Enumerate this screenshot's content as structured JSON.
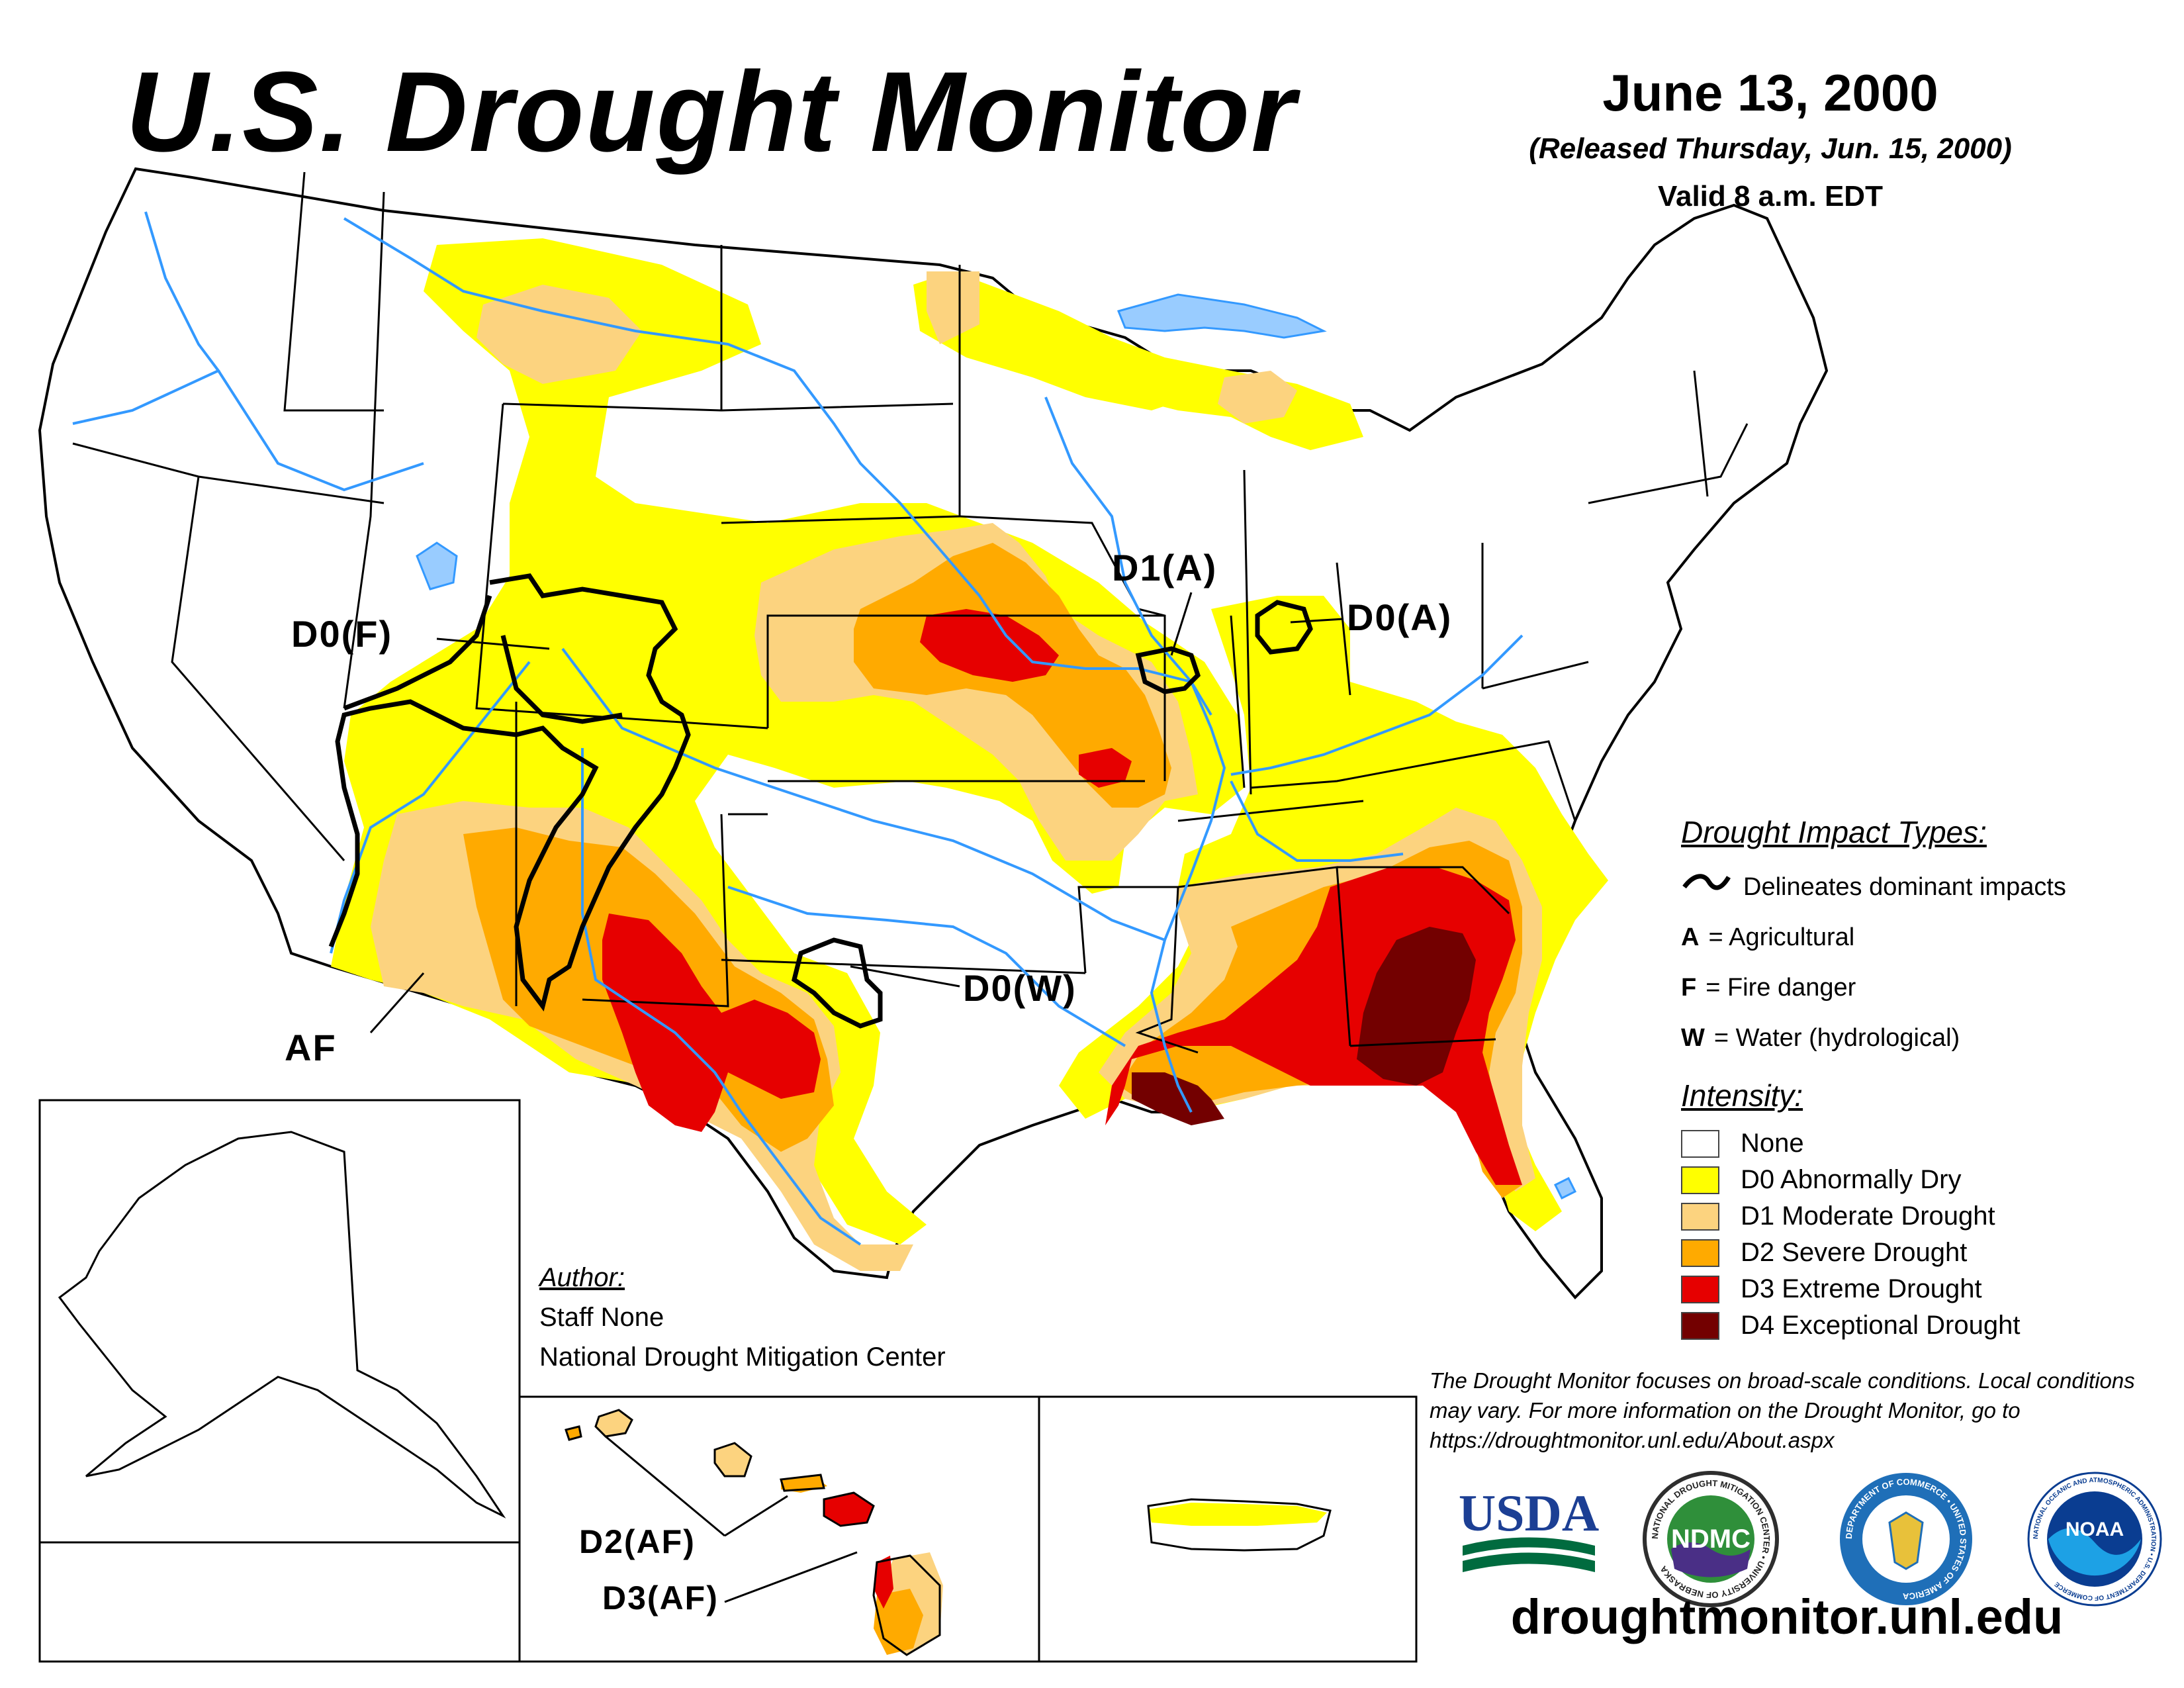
{
  "header": {
    "title": "U.S. Drought Monitor",
    "date": "June 13, 2000",
    "released": "(Released Thursday, Jun. 15, 2000)",
    "valid": "Valid 8 a.m. EDT"
  },
  "map_labels": {
    "d0_f": "D0(F)",
    "d1_a": "D1(A)",
    "d0_a": "D0(A)",
    "d0_w": "D0(W)",
    "af": "AF",
    "d2_af": "D2(AF)",
    "d3_af": "D3(AF)"
  },
  "legend": {
    "impact_title": "Drought Impact Types:",
    "delineates": "Delineates dominant impacts",
    "impacts": [
      {
        "code": "A",
        "label": "= Agricultural"
      },
      {
        "code": "F",
        "label": "= Fire danger"
      },
      {
        "code": "W",
        "label": "= Water (hydrological)"
      }
    ],
    "intensity_title": "Intensity:",
    "intensity": [
      {
        "label": "None",
        "color": "#ffffff"
      },
      {
        "label": "D0 Abnormally Dry",
        "color": "#ffff00"
      },
      {
        "label": "D1 Moderate Drought",
        "color": "#fcd37f"
      },
      {
        "label": "D2 Severe Drought",
        "color": "#ffaa00"
      },
      {
        "label": "D3 Extreme Drought",
        "color": "#e60000"
      },
      {
        "label": "D4 Exceptional Drought",
        "color": "#730000"
      }
    ]
  },
  "author": {
    "heading": "Author:",
    "name": "Staff None",
    "org": "National Drought Mitigation Center"
  },
  "disclaimer": "The Drought Monitor focuses on broad-scale conditions. Local conditions may vary. For more information on the Drought Monitor, go to https://droughtmonitor.unl.edu/About.aspx",
  "logos": {
    "usda": "USDA",
    "ndmc": "NDMC",
    "ndmc_ring": "NATIONAL DROUGHT MITIGATION CENTER • UNIVERSITY OF NEBRASKA",
    "commerce_ring": "DEPARTMENT OF COMMERCE • UNITED STATES OF AMERICA",
    "noaa": "NOAA",
    "noaa_ring": "NATIONAL OCEANIC AND ATMOSPHERIC ADMINISTRATION • U.S. DEPARTMENT OF COMMERCE"
  },
  "website": "droughtmonitor.unl.edu",
  "colors": {
    "d0": "#ffff00",
    "d1": "#fcd37f",
    "d2": "#ffaa00",
    "d3": "#e60000",
    "d4": "#730000",
    "water": "#3399ff",
    "lake": "#99ccff"
  }
}
